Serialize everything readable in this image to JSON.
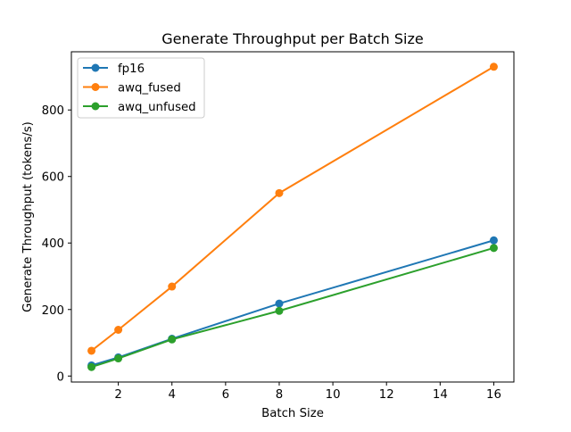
{
  "chart_data": {
    "type": "line",
    "title": "Generate Throughput per Batch Size",
    "xlabel": "Batch Size",
    "ylabel": "Generate Throughput (tokens/s)",
    "x": [
      1,
      2,
      4,
      8,
      16
    ],
    "xlim": [
      0.25,
      16.75
    ],
    "ylim": [
      -18,
      975
    ],
    "xticks": [
      2,
      4,
      6,
      8,
      10,
      12,
      14,
      16
    ],
    "yticks": [
      0,
      200,
      400,
      600,
      800
    ],
    "grid": false,
    "legend": "top-left",
    "series": [
      {
        "name": "fp16",
        "color": "#1f77b4",
        "values": [
          32,
          56,
          112,
          218,
          408
        ]
      },
      {
        "name": "awq_fused",
        "color": "#ff7f0e",
        "values": [
          76,
          139,
          269,
          550,
          930
        ]
      },
      {
        "name": "awq_unfused",
        "color": "#2ca02c",
        "values": [
          27,
          53,
          110,
          196,
          385
        ]
      }
    ]
  }
}
